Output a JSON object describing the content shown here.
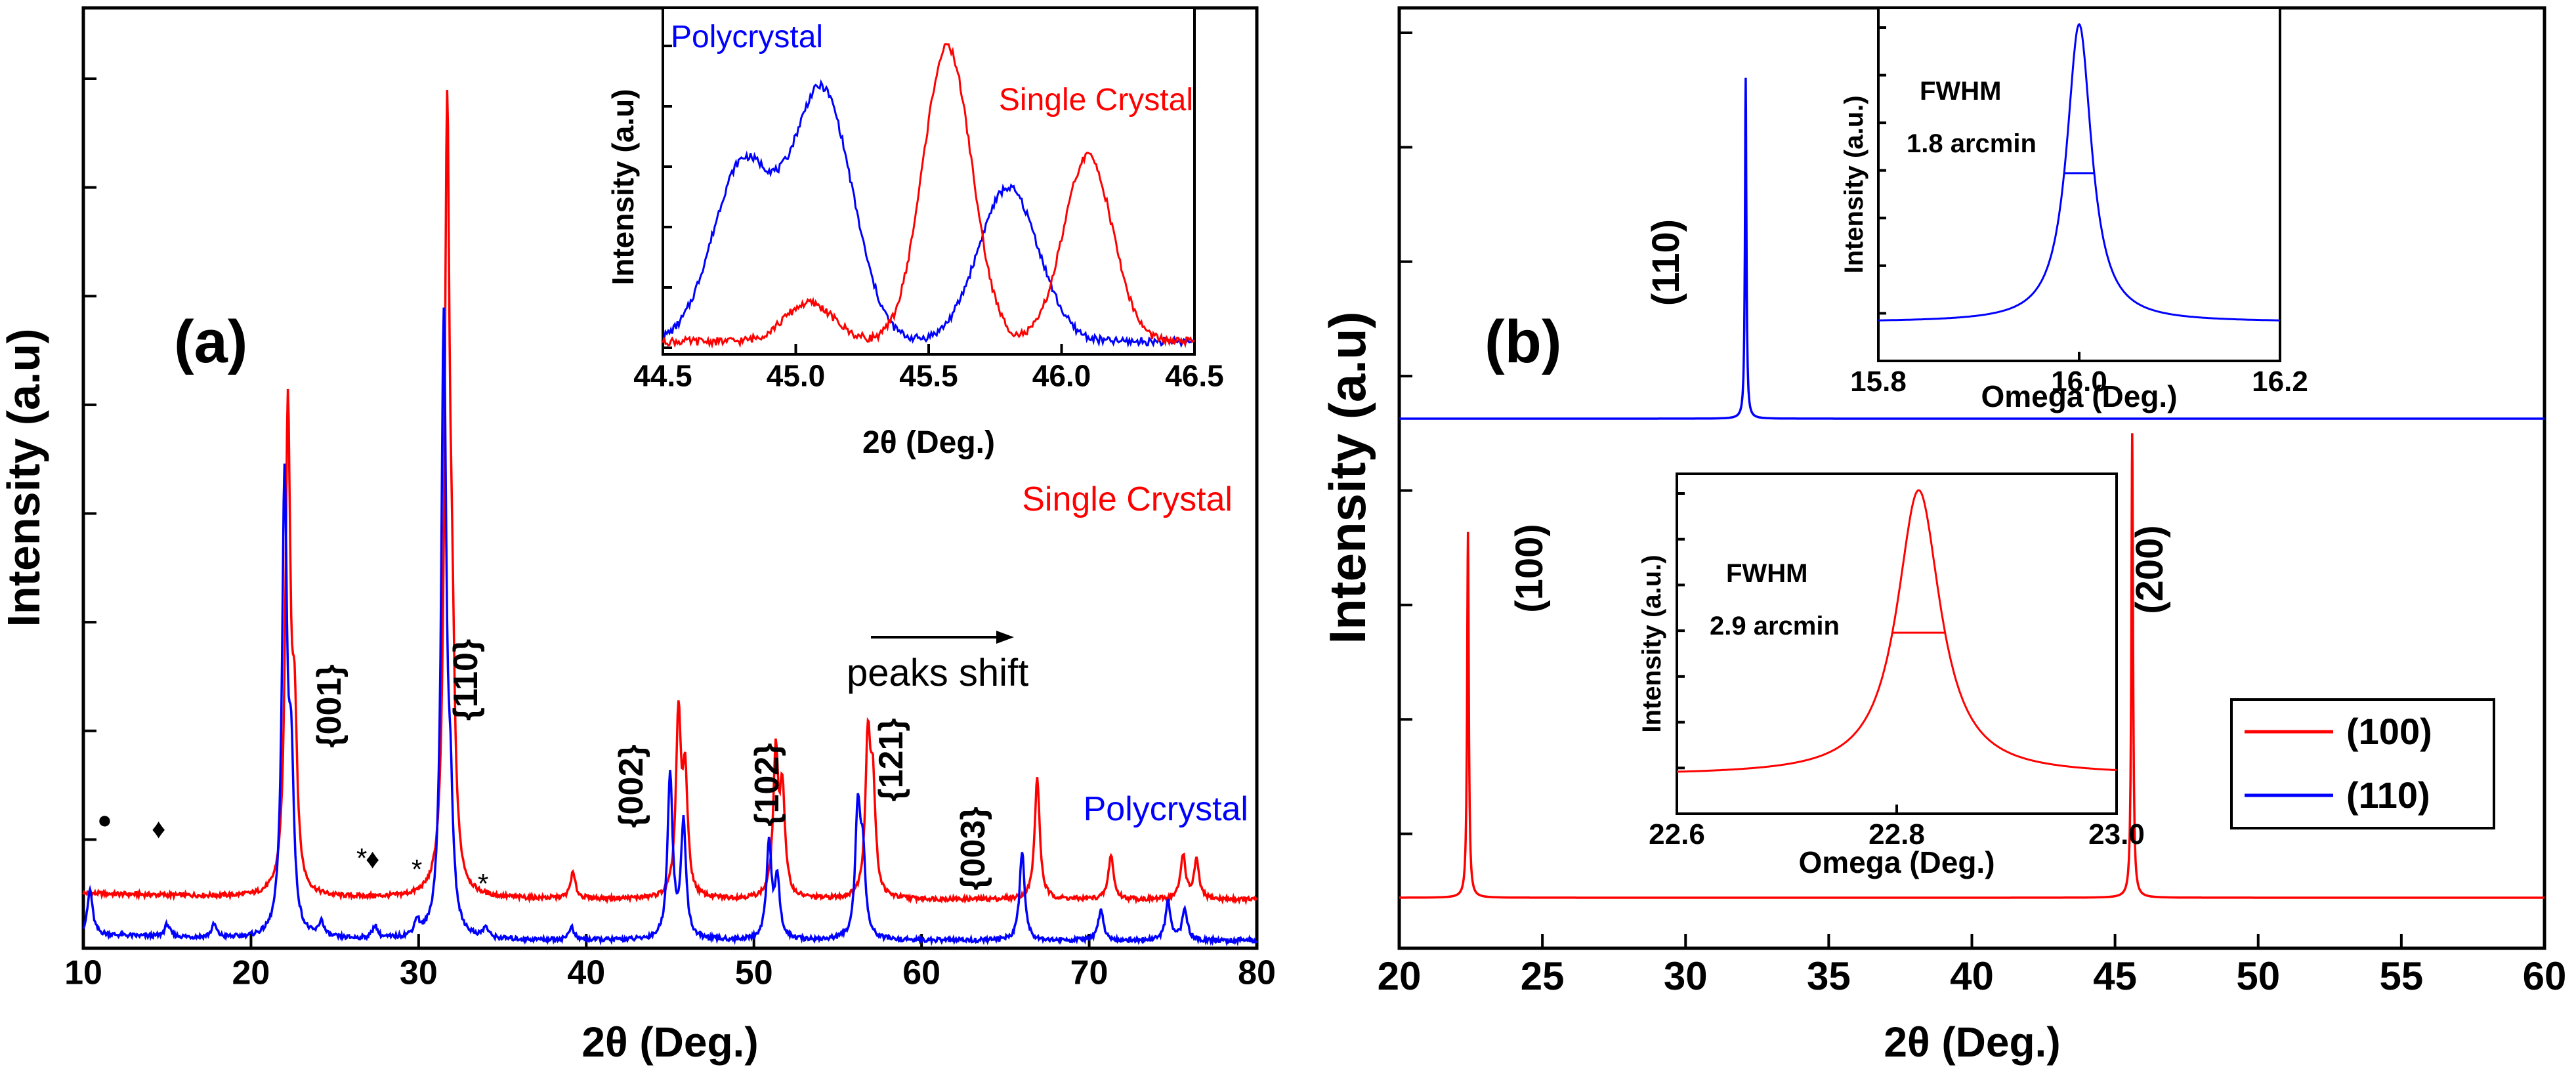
{
  "chart_data": [
    {
      "panel": "(a)",
      "type": "line",
      "xlabel": "2θ (Deg.)",
      "ylabel": "Intensity (a.u)",
      "xlim": [
        10,
        80
      ],
      "xticks": [
        "10",
        "20",
        "30",
        "40",
        "50",
        "60",
        "70",
        "80"
      ],
      "series": [
        {
          "name": "Single Crystal",
          "color": "#ff0000",
          "baseline": 0.38,
          "peaks": [
            [
              22.2,
              3.75
            ],
            [
              22.6,
              1.2
            ],
            [
              31.7,
              5.95
            ],
            [
              32.0,
              1.4
            ],
            [
              39.2,
              0.2
            ],
            [
              45.5,
              1.4
            ],
            [
              45.9,
              0.9
            ],
            [
              51.3,
              1.1
            ],
            [
              51.7,
              0.8
            ],
            [
              56.8,
              1.2
            ],
            [
              57.1,
              0.8
            ],
            [
              66.9,
              0.95
            ],
            [
              71.3,
              0.35
            ],
            [
              75.6,
              0.35
            ],
            [
              76.4,
              0.3
            ]
          ]
        },
        {
          "name": "Polycrystal",
          "color": "#0000ff",
          "baseline": 0.06,
          "peaks": [
            [
              10.4,
              0.35
            ],
            [
              15.0,
              0.1
            ],
            [
              17.8,
              0.1
            ],
            [
              22.0,
              3.5
            ],
            [
              22.4,
              1.2
            ],
            [
              24.2,
              0.12
            ],
            [
              27.4,
              0.1
            ],
            [
              29.9,
              0.12
            ],
            [
              31.5,
              4.8
            ],
            [
              31.9,
              0.8
            ],
            [
              34.0,
              0.08
            ],
            [
              39.1,
              0.1
            ],
            [
              45.0,
              1.3
            ],
            [
              45.8,
              0.9
            ],
            [
              50.9,
              0.75
            ],
            [
              51.4,
              0.45
            ],
            [
              56.2,
              1.0
            ],
            [
              56.5,
              0.6
            ],
            [
              66.0,
              0.7
            ],
            [
              70.7,
              0.25
            ],
            [
              74.7,
              0.3
            ],
            [
              75.7,
              0.25
            ]
          ]
        }
      ],
      "annotations": {
        "plane_labels": [
          "{001}",
          "{110}",
          "{002}",
          "{102}",
          "{121}",
          "{003}"
        ],
        "impurity_symbols": [
          "●",
          "♦",
          "*",
          "♦",
          "*",
          "*"
        ],
        "arrow_label": "peaks shift"
      },
      "inset": {
        "xlabel": "2θ  (Deg.)",
        "ylabel": "Intensity (a.u)",
        "xlim": [
          44.5,
          46.5
        ],
        "xticks": [
          "44.5",
          "45.0",
          "45.5",
          "46.0",
          "46.5"
        ],
        "series": [
          {
            "name": "Polycrystal",
            "color": "#0000ff",
            "peaks": [
              [
                44.8,
                0.55
              ],
              [
                45.1,
                0.78
              ],
              [
                45.8,
                0.48
              ]
            ]
          },
          {
            "name": "Single Crystal",
            "color": "#ff0000",
            "peaks": [
              [
                45.05,
                0.12
              ],
              [
                45.57,
                0.92
              ],
              [
                46.1,
                0.58
              ]
            ]
          }
        ]
      }
    },
    {
      "panel": "(b)",
      "type": "line",
      "xlabel": "2θ (Deg.)",
      "ylabel": "Intensity (a.u)",
      "xlim": [
        20,
        60
      ],
      "xticks": [
        "20",
        "25",
        "30",
        "35",
        "40",
        "45",
        "50",
        "55",
        "60"
      ],
      "series": [
        {
          "name": "(100)",
          "color": "#ff0000",
          "peaks": [
            [
              22.4,
              1.0
            ],
            [
              45.6,
              1.27
            ]
          ]
        },
        {
          "name": "(110)",
          "color": "#0000ff",
          "peaks": [
            [
              32.1,
              0.86
            ]
          ]
        }
      ],
      "peak_labels": [
        "(110)",
        "(100)",
        "(200)"
      ],
      "legend": {
        "position": "bottom-right",
        "entries": [
          "(100)",
          "(110)"
        ]
      },
      "insets": [
        {
          "xlabel": "Omega (Deg.)",
          "ylabel": "Intensity (a.u.)",
          "xlim": [
            15.8,
            16.2
          ],
          "xticks": [
            "15.8",
            "16.0",
            "16.2"
          ],
          "fwhm_label": "FWHM",
          "fwhm_value": "1.8 arcmin",
          "series": [
            {
              "name": "(110)",
              "color": "#0000ff",
              "peak": 16.0,
              "fwhm_deg": 0.03
            }
          ]
        },
        {
          "xlabel": "Omega (Deg.)",
          "ylabel": "Intensity (a.u.)",
          "xlim": [
            22.6,
            23.0
          ],
          "xticks": [
            "22.6",
            "22.8",
            "23.0"
          ],
          "fwhm_label": "FWHM",
          "fwhm_value": "2.9 arcmin",
          "series": [
            {
              "name": "(100)",
              "color": "#ff0000",
              "peak": 22.82,
              "fwhm_deg": 0.048
            }
          ]
        }
      ]
    }
  ]
}
